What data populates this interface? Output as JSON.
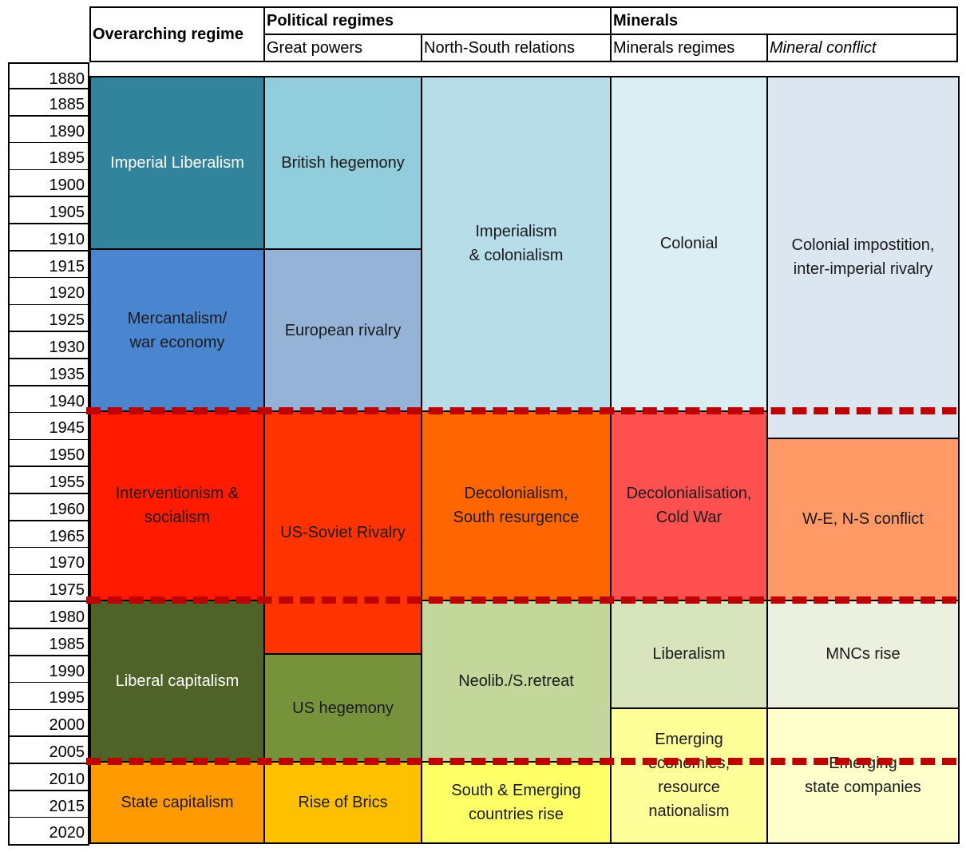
{
  "chart_data": {
    "type": "table",
    "title": "",
    "header": {
      "overarching": "Overarching regime",
      "political": "Political regimes",
      "minerals": "Minerals",
      "great_powers": "Great powers",
      "north_south": "North-South relations",
      "minerals_regimes": "Minerals regimes",
      "mineral_conflict": "Mineral conflict"
    },
    "years": [
      "1880",
      "1885",
      "1890",
      "1895",
      "1900",
      "1905",
      "1910",
      "1915",
      "1920",
      "1925",
      "1930",
      "1935",
      "1940",
      "1945",
      "1950",
      "1955",
      "1960",
      "1965",
      "1970",
      "1975",
      "1980",
      "1985",
      "1990",
      "1995",
      "2000",
      "2005",
      "2010",
      "2015",
      "2020"
    ],
    "columns": [
      {
        "key": "overarching",
        "blocks": [
          {
            "label": "Imperial Liberalism",
            "start": 1880,
            "end": 1912,
            "color": "#31849b",
            "text": "light"
          },
          {
            "label": "Mercantalism/\nwar economy",
            "start": 1912,
            "end": 1942,
            "color": "#4a86d0",
            "text": "dark"
          },
          {
            "label": "Interventionism &\nsocialism",
            "start": 1942,
            "end": 1977,
            "color": "#ff1a00",
            "text": "dark"
          },
          {
            "label": "Liberal capitalism",
            "start": 1977,
            "end": 2007,
            "color": "#4f6228",
            "text": "light"
          },
          {
            "label": "State capitalism",
            "start": 2007,
            "end": 2022,
            "color": "#ff9a00",
            "text": "dark"
          }
        ]
      },
      {
        "key": "great_powers",
        "blocks": [
          {
            "label": "British hegemony",
            "start": 1880,
            "end": 1912,
            "color": "#92cddc",
            "text": "dark"
          },
          {
            "label": "European rivalry",
            "start": 1912,
            "end": 1942,
            "color": "#95b3d7",
            "text": "dark"
          },
          {
            "label": "US-Soviet Rivalry",
            "start": 1942,
            "end": 1987,
            "color": "#ff3300",
            "text": "dark"
          },
          {
            "label": "US hegemony",
            "start": 1987,
            "end": 2007,
            "color": "#76933c",
            "text": "dark"
          },
          {
            "label": "Rise of Brics",
            "start": 2007,
            "end": 2022,
            "color": "#ffc000",
            "text": "dark"
          }
        ]
      },
      {
        "key": "north_south",
        "blocks": [
          {
            "label": "Imperialism\n& colonialism",
            "start": 1880,
            "end": 1942,
            "color": "#b7dde8",
            "text": "dark"
          },
          {
            "label": "Decolonialism,\nSouth resurgence",
            "start": 1942,
            "end": 1977,
            "color": "#ff6600",
            "text": "dark"
          },
          {
            "label": "Neolib./S.retreat",
            "start": 1977,
            "end": 2007,
            "color": "#c4d79b",
            "text": "dark"
          },
          {
            "label": "South & Emerging\ncountries rise",
            "start": 2007,
            "end": 2022,
            "color": "#ffff66",
            "text": "dark"
          }
        ]
      },
      {
        "key": "minerals_regimes",
        "blocks": [
          {
            "label": "Colonial",
            "start": 1880,
            "end": 1942,
            "color": "#daeef3",
            "text": "dark"
          },
          {
            "label": "Decolonialisation,\nCold War",
            "start": 1942,
            "end": 1977,
            "color": "#ff5050",
            "text": "dark"
          },
          {
            "label": "Liberalism",
            "start": 1977,
            "end": 1997,
            "color": "#d8e4bc",
            "text": "dark"
          },
          {
            "label": "Emerging\neconomies,\nresource\nnationalism",
            "start": 1997,
            "end": 2022,
            "color": "#ffff99",
            "text": "dark"
          }
        ]
      },
      {
        "key": "mineral_conflict",
        "blocks": [
          {
            "label": "Colonial impostition,\ninter-imperial rivalry",
            "start": 1880,
            "end": 1947,
            "color": "#dce6f1",
            "text": "dark"
          },
          {
            "label": "W-E, N-S conflict",
            "start": 1947,
            "end": 1977,
            "color": "#ff9966",
            "text": "dark"
          },
          {
            "label": "MNCs rise",
            "start": 1977,
            "end": 1997,
            "color": "#ebf1de",
            "text": "dark"
          },
          {
            "label": "Emerging\nstate companies",
            "start": 1997,
            "end": 2022,
            "color": "#ffffcc",
            "text": "dark"
          }
        ]
      }
    ],
    "period_breaks": [
      1942,
      1977,
      2007
    ],
    "break_style": "red dashed line"
  }
}
